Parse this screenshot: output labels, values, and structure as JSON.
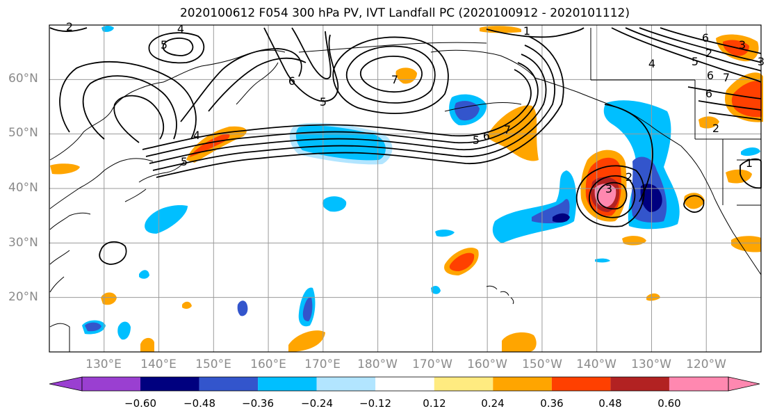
{
  "title": "2020100612 F054 300 hPa PV, IVT Landfall PC (2020100912 - 2020101112)",
  "lat_labels": [
    "60°N",
    "50°N",
    "40°N",
    "30°N",
    "20°N"
  ],
  "lon_labels": [
    "130°E",
    "140°E",
    "150°E",
    "160°E",
    "170°E",
    "180°W",
    "170°W",
    "160°W",
    "150°W",
    "140°W",
    "130°W",
    "120°W"
  ],
  "map": {
    "lon_range": [
      120,
      250
    ],
    "lat_range": [
      10,
      70
    ],
    "gridline_color": "#9a9a9a",
    "contour_color": "#000000",
    "contour_labels": [
      "2",
      "4",
      "5",
      "4",
      "5",
      "6",
      "7",
      "5",
      "1",
      "7",
      "6",
      "5",
      "6",
      "2",
      "3",
      "4",
      "5",
      "6",
      "7",
      "3",
      "2",
      "6",
      "3",
      "2",
      "1"
    ]
  },
  "colorbar": {
    "ticks": [
      "−0.60",
      "−0.48",
      "−0.36",
      "−0.24",
      "−0.12",
      "0.12",
      "0.24",
      "0.36",
      "0.48",
      "0.60"
    ],
    "colors": [
      "#9a3fd1",
      "#00007f",
      "#3355cc",
      "#00bfff",
      "#b2e5ff",
      "#ffffff",
      "#ffeb80",
      "#ffa500",
      "#ff4000",
      "#b22222",
      "#ff88b0"
    ],
    "extend": "both"
  }
}
